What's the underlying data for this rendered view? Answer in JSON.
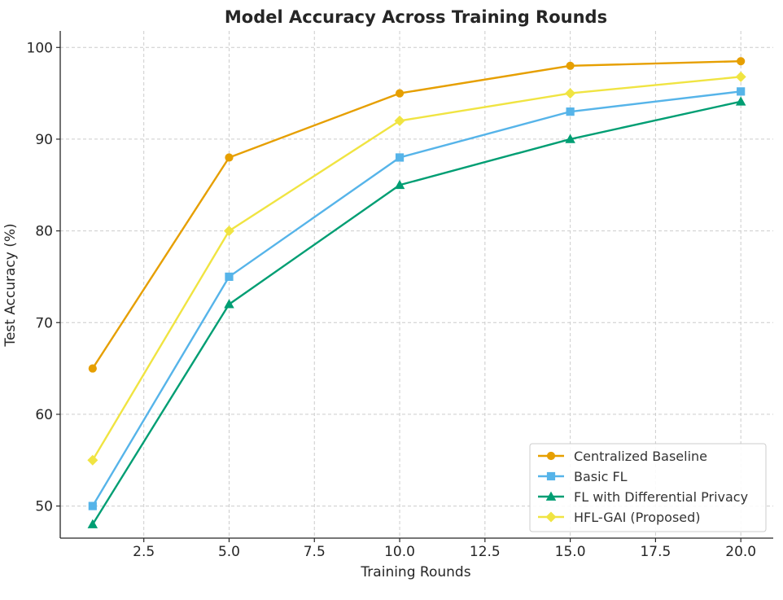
{
  "chart_data": {
    "type": "line",
    "title": "Model Accuracy Across Training Rounds",
    "xlabel": "Training Rounds",
    "ylabel": "Test Accuracy (%)",
    "xlim": [
      0.05,
      20.95
    ],
    "ylim": [
      46.5,
      101.8
    ],
    "xticks": [
      2.5,
      5.0,
      7.5,
      10.0,
      12.5,
      15.0,
      17.5,
      20.0
    ],
    "xtick_labels": [
      "2.5",
      "5.0",
      "7.5",
      "10.0",
      "12.5",
      "15.0",
      "17.5",
      "20.0"
    ],
    "yticks": [
      50,
      60,
      70,
      80,
      90,
      100
    ],
    "ytick_labels": [
      "50",
      "60",
      "70",
      "80",
      "90",
      "100"
    ],
    "grid": true,
    "legend_position": "bottom-right",
    "x": [
      1,
      5,
      10,
      15,
      20
    ],
    "series": [
      {
        "name": "Centralized Baseline",
        "values": [
          65,
          88,
          95,
          98,
          98.5
        ],
        "color": "#E69F00",
        "marker": "circle"
      },
      {
        "name": "Basic FL",
        "values": [
          50,
          75,
          88,
          93,
          95.2
        ],
        "color": "#56B4E9",
        "marker": "square"
      },
      {
        "name": "FL with Differential Privacy",
        "values": [
          48,
          72,
          85,
          90,
          94.1
        ],
        "color": "#009E73",
        "marker": "triangle"
      },
      {
        "name": "HFL-GAI (Proposed)",
        "values": [
          55,
          80,
          92,
          95,
          96.8
        ],
        "color": "#F0E442",
        "marker": "diamond"
      }
    ]
  }
}
